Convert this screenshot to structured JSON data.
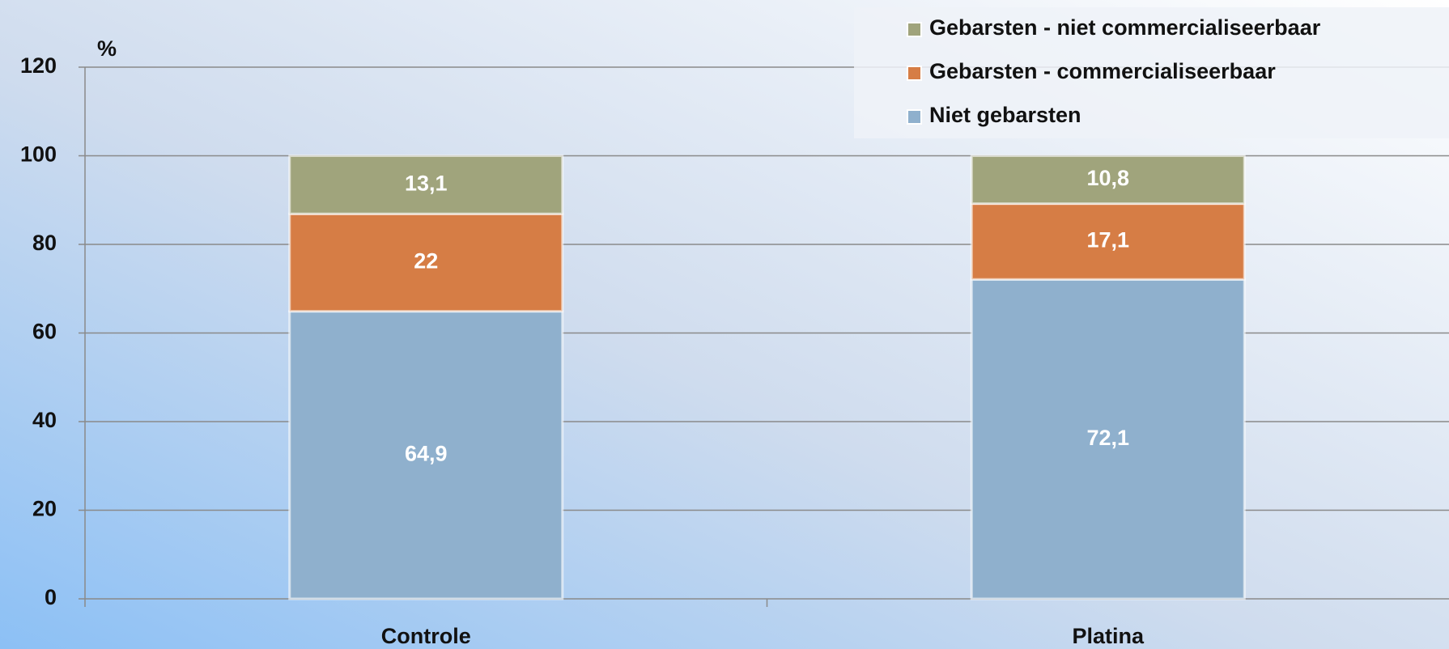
{
  "chart_data": {
    "type": "stacked_bar",
    "y_unit_label": "%",
    "categories": [
      "Controle",
      "Platina"
    ],
    "series": [
      {
        "name": "Niet gebarsten",
        "color": "#8fb0cd",
        "values": [
          64.9,
          72.1
        ],
        "value_labels": [
          "64,9",
          "72,1"
        ]
      },
      {
        "name": "Gebarsten - commercialiseerbaar",
        "color": "#d67d45",
        "values": [
          22,
          17.1
        ],
        "value_labels": [
          "22",
          "17,1"
        ]
      },
      {
        "name": "Gebarsten - niet commercialiseerbaar",
        "color": "#a0a47c",
        "values": [
          13.1,
          10.8
        ],
        "value_labels": [
          "13,1",
          "10,8"
        ]
      }
    ],
    "ylim": [
      0,
      120
    ],
    "yticks": [
      0,
      20,
      40,
      60,
      80,
      100,
      120
    ],
    "grid": true,
    "legend": "top-right"
  }
}
